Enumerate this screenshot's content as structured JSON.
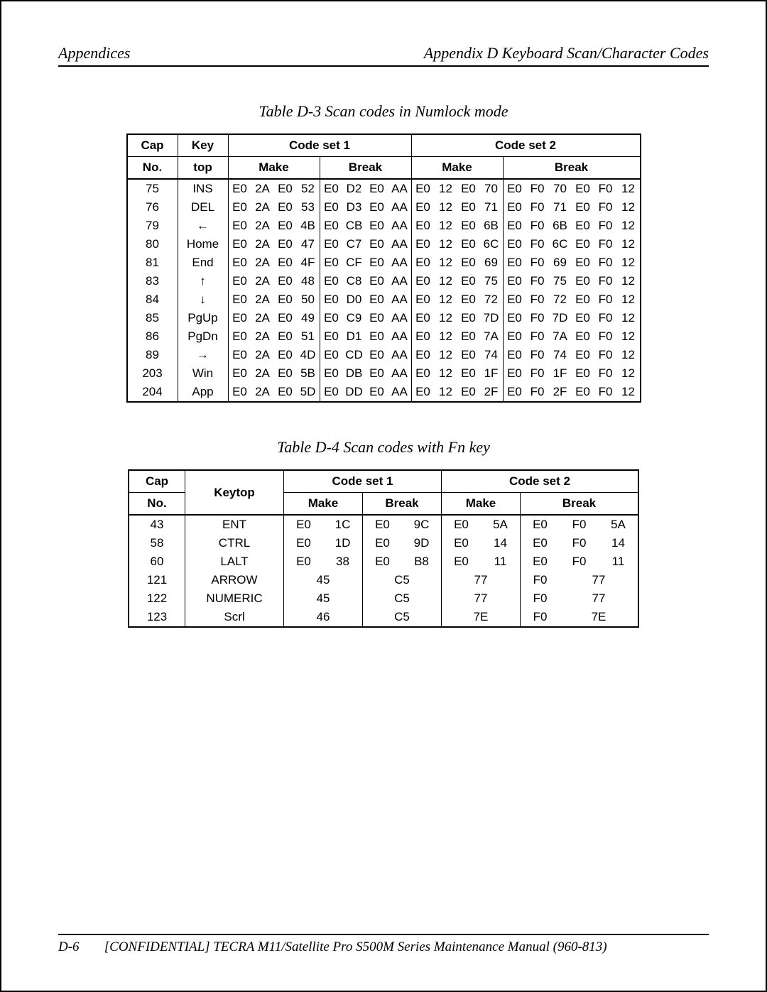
{
  "header": {
    "left": "Appendices",
    "right": "Appendix D  Keyboard Scan/Character Codes"
  },
  "table3": {
    "caption": "Table D-3  Scan codes in Numlock mode",
    "headers": {
      "cap": "Cap",
      "no": "No.",
      "key": "Key",
      "top": "top",
      "cs1": "Code set 1",
      "cs2": "Code set 2",
      "make": "Make",
      "break": "Break"
    },
    "rows": [
      {
        "cap": "75",
        "key": "INS",
        "m1": [
          "E0",
          "2A",
          "E0",
          "52"
        ],
        "b1": [
          "E0",
          "D2",
          "E0",
          "AA"
        ],
        "m2": [
          "E0",
          "12",
          "E0",
          "70"
        ],
        "b2": [
          "E0",
          "F0",
          "70",
          "E0",
          "F0",
          "12"
        ]
      },
      {
        "cap": "76",
        "key": "DEL",
        "m1": [
          "E0",
          "2A",
          "E0",
          "53"
        ],
        "b1": [
          "E0",
          "D3",
          "E0",
          "AA"
        ],
        "m2": [
          "E0",
          "12",
          "E0",
          "71"
        ],
        "b2": [
          "E0",
          "F0",
          "71",
          "E0",
          "F0",
          "12"
        ]
      },
      {
        "cap": "79",
        "key": "←",
        "m1": [
          "E0",
          "2A",
          "E0",
          "4B"
        ],
        "b1": [
          "E0",
          "CB",
          "E0",
          "AA"
        ],
        "m2": [
          "E0",
          "12",
          "E0",
          "6B"
        ],
        "b2": [
          "E0",
          "F0",
          "6B",
          "E0",
          "F0",
          "12"
        ]
      },
      {
        "cap": "80",
        "key": "Home",
        "m1": [
          "E0",
          "2A",
          "E0",
          "47"
        ],
        "b1": [
          "E0",
          "C7",
          "E0",
          "AA"
        ],
        "m2": [
          "E0",
          "12",
          "E0",
          "6C"
        ],
        "b2": [
          "E0",
          "F0",
          "6C",
          "E0",
          "F0",
          "12"
        ]
      },
      {
        "cap": "81",
        "key": "End",
        "m1": [
          "E0",
          "2A",
          "E0",
          "4F"
        ],
        "b1": [
          "E0",
          "CF",
          "E0",
          "AA"
        ],
        "m2": [
          "E0",
          "12",
          "E0",
          "69"
        ],
        "b2": [
          "E0",
          "F0",
          "69",
          "E0",
          "F0",
          "12"
        ]
      },
      {
        "cap": "83",
        "key": "↑",
        "m1": [
          "E0",
          "2A",
          "E0",
          "48"
        ],
        "b1": [
          "E0",
          "C8",
          "E0",
          "AA"
        ],
        "m2": [
          "E0",
          "12",
          "E0",
          "75"
        ],
        "b2": [
          "E0",
          "F0",
          "75",
          "E0",
          "F0",
          "12"
        ]
      },
      {
        "cap": "84",
        "key": "↓",
        "m1": [
          "E0",
          "2A",
          "E0",
          "50"
        ],
        "b1": [
          "E0",
          "D0",
          "E0",
          "AA"
        ],
        "m2": [
          "E0",
          "12",
          "E0",
          "72"
        ],
        "b2": [
          "E0",
          "F0",
          "72",
          "E0",
          "F0",
          "12"
        ]
      },
      {
        "cap": "85",
        "key": "PgUp",
        "m1": [
          "E0",
          "2A",
          "E0",
          "49"
        ],
        "b1": [
          "E0",
          "C9",
          "E0",
          "AA"
        ],
        "m2": [
          "E0",
          "12",
          "E0",
          "7D"
        ],
        "b2": [
          "E0",
          "F0",
          "7D",
          "E0",
          "F0",
          "12"
        ]
      },
      {
        "cap": "86",
        "key": "PgDn",
        "m1": [
          "E0",
          "2A",
          "E0",
          "51"
        ],
        "b1": [
          "E0",
          "D1",
          "E0",
          "AA"
        ],
        "m2": [
          "E0",
          "12",
          "E0",
          "7A"
        ],
        "b2": [
          "E0",
          "F0",
          "7A",
          "E0",
          "F0",
          "12"
        ]
      },
      {
        "cap": "89",
        "key": "→",
        "m1": [
          "E0",
          "2A",
          "E0",
          "4D"
        ],
        "b1": [
          "E0",
          "CD",
          "E0",
          "AA"
        ],
        "m2": [
          "E0",
          "12",
          "E0",
          "74"
        ],
        "b2": [
          "E0",
          "F0",
          "74",
          "E0",
          "F0",
          "12"
        ]
      },
      {
        "cap": "203",
        "key": "Win",
        "m1": [
          "E0",
          "2A",
          "E0",
          "5B"
        ],
        "b1": [
          "E0",
          "DB",
          "E0",
          "AA"
        ],
        "m2": [
          "E0",
          "12",
          "E0",
          "1F"
        ],
        "b2": [
          "E0",
          "F0",
          "1F",
          "E0",
          "F0",
          "12"
        ]
      },
      {
        "cap": "204",
        "key": "App",
        "m1": [
          "E0",
          "2A",
          "E0",
          "5D"
        ],
        "b1": [
          "E0",
          "DD",
          "E0",
          "AA"
        ],
        "m2": [
          "E0",
          "12",
          "E0",
          "2F"
        ],
        "b2": [
          "E0",
          "F0",
          "2F",
          "E0",
          "F0",
          "12"
        ]
      }
    ]
  },
  "table4": {
    "caption": "Table D-4  Scan codes with Fn key",
    "headers": {
      "cap": "Cap",
      "no": "No.",
      "keytop": "Keytop",
      "cs1": "Code set 1",
      "cs2": "Code set 2",
      "make": "Make",
      "break": "Break"
    },
    "rows": [
      {
        "cap": "43",
        "key": "ENT",
        "m1": [
          "E0",
          "1C"
        ],
        "b1": [
          "E0",
          "9C"
        ],
        "m2": [
          "E0",
          "5A"
        ],
        "b2": [
          "E0",
          "F0",
          "5A"
        ]
      },
      {
        "cap": "58",
        "key": "CTRL",
        "m1": [
          "E0",
          "1D"
        ],
        "b1": [
          "E0",
          "9D"
        ],
        "m2": [
          "E0",
          "14"
        ],
        "b2": [
          "E0",
          "F0",
          "14"
        ]
      },
      {
        "cap": "60",
        "key": "LALT",
        "m1": [
          "E0",
          "38"
        ],
        "b1": [
          "E0",
          "B8"
        ],
        "m2": [
          "E0",
          "11"
        ],
        "b2": [
          "E0",
          "F0",
          "11"
        ]
      },
      {
        "cap": "121",
        "key": "ARROW",
        "m1": [
          "45"
        ],
        "b1": [
          "C5"
        ],
        "m2": [
          "77"
        ],
        "b2": [
          "F0",
          "77"
        ]
      },
      {
        "cap": "122",
        "key": "NUMERIC",
        "m1": [
          "45"
        ],
        "b1": [
          "C5"
        ],
        "m2": [
          "77"
        ],
        "b2": [
          "F0",
          "77"
        ]
      },
      {
        "cap": "123",
        "key": "Scrl",
        "m1": [
          "46"
        ],
        "b1": [
          "C5"
        ],
        "m2": [
          "7E"
        ],
        "b2": [
          "F0",
          "7E"
        ]
      }
    ]
  },
  "footer": {
    "page": "D-6",
    "text": "[CONFIDENTIAL] TECRA M11/Satellite Pro S500M Series Maintenance Manual (960-813)"
  }
}
